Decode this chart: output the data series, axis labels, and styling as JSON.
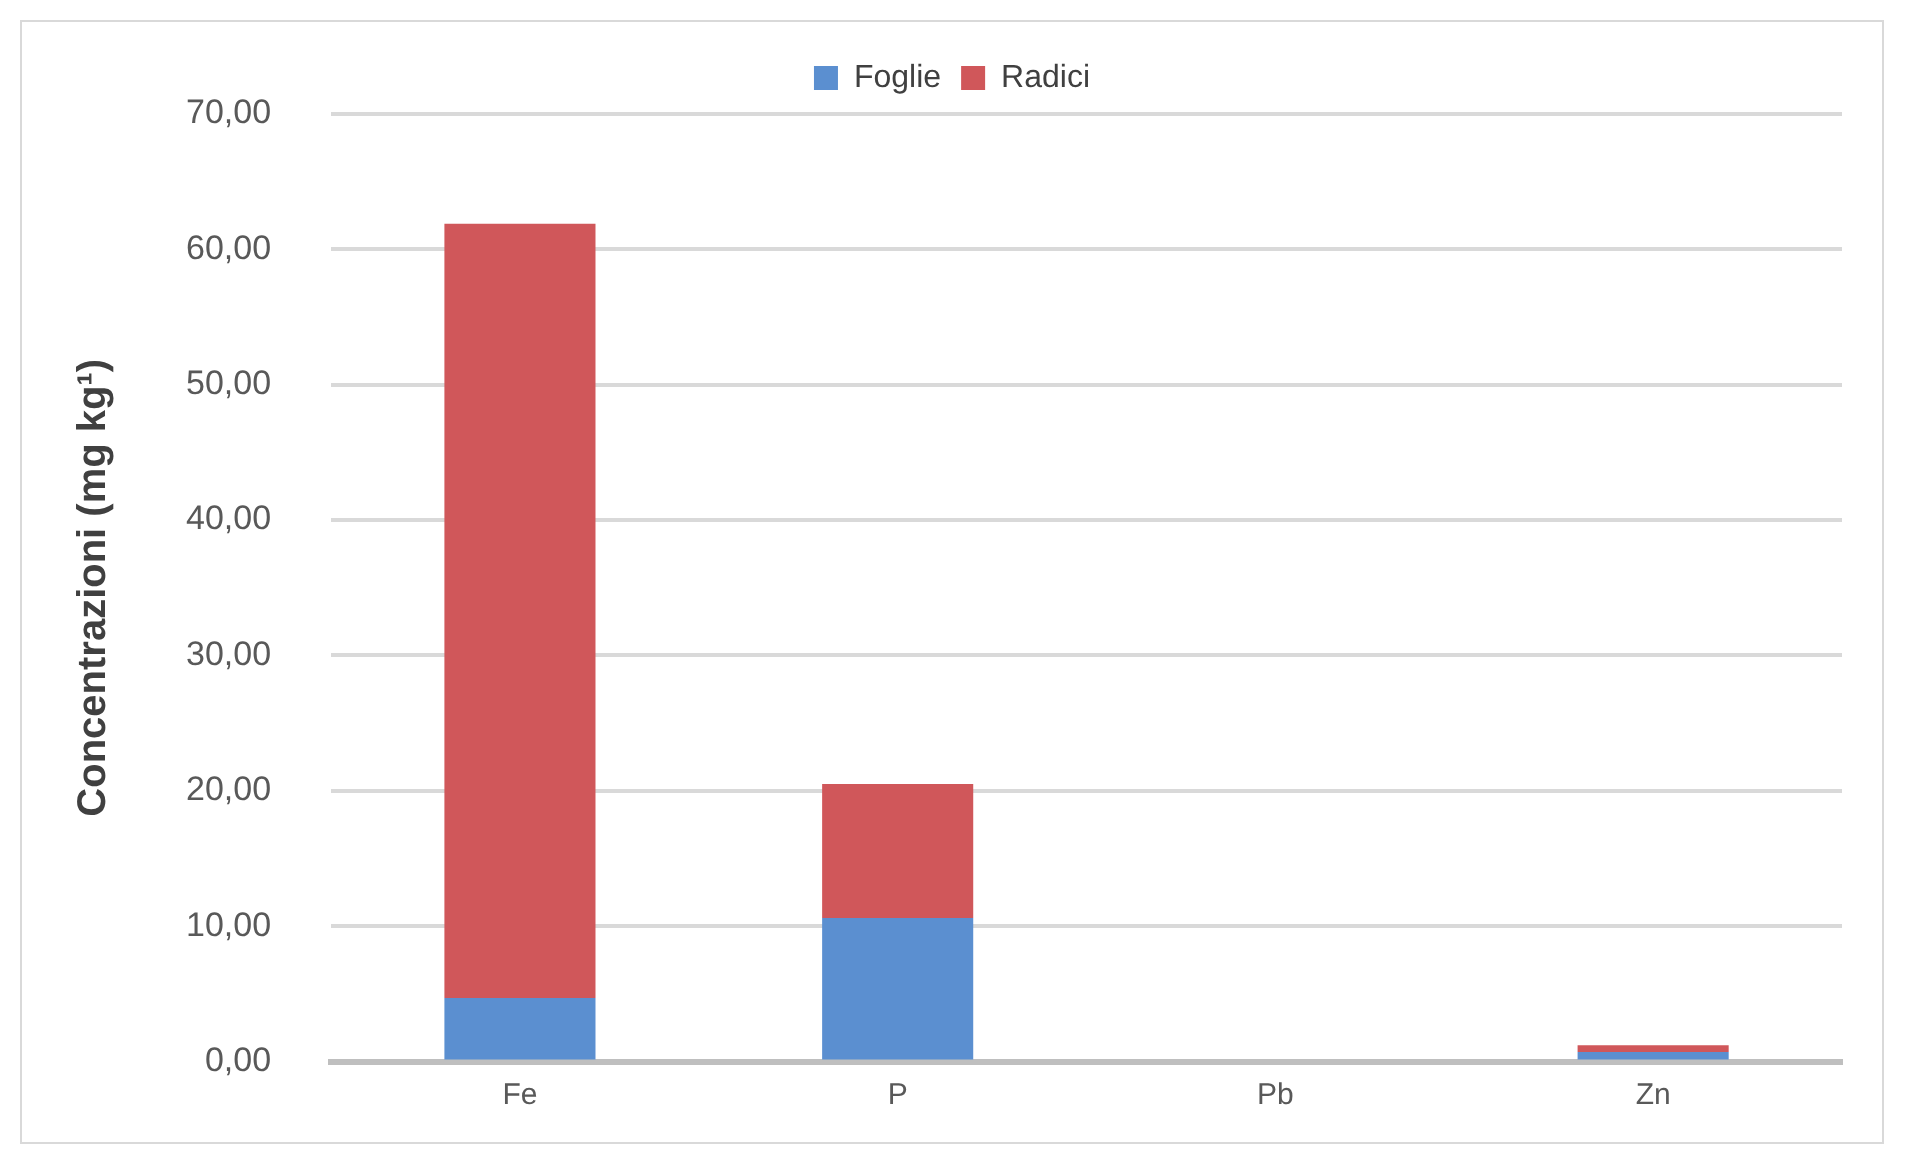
{
  "chart_data": {
    "type": "bar",
    "stacked": true,
    "ylabel": "Concentrazioni (mg kg¹)",
    "categories": [
      "Fe",
      "P",
      "Pb",
      "Zn"
    ],
    "series": [
      {
        "name": "Foglie",
        "color": "#5b8fd0",
        "values": [
          4.7,
          10.6,
          0,
          0.7
        ]
      },
      {
        "name": "Radici",
        "color": "#d0575a",
        "values": [
          57.2,
          9.9,
          0,
          0.5
        ]
      }
    ],
    "ylim": [
      0,
      70
    ],
    "yticks": [
      {
        "value": 0,
        "label": "0,00"
      },
      {
        "value": 10,
        "label": "10,00"
      },
      {
        "value": 20,
        "label": "20,00"
      },
      {
        "value": 30,
        "label": "30,00"
      },
      {
        "value": 40,
        "label": "40,00"
      },
      {
        "value": 50,
        "label": "50,00"
      },
      {
        "value": 60,
        "label": "60,00"
      },
      {
        "value": 70,
        "label": "70,00"
      }
    ],
    "grid": "y",
    "legend": "top"
  }
}
